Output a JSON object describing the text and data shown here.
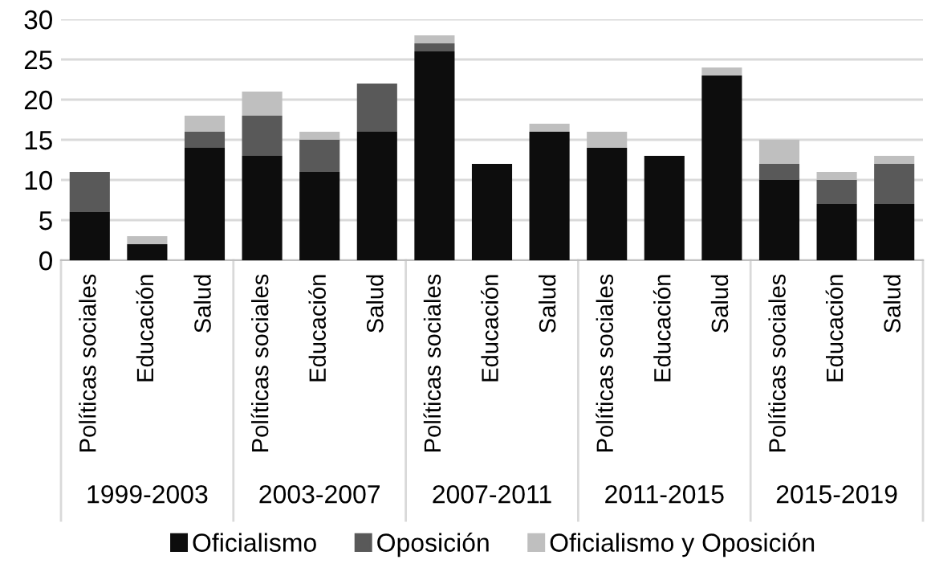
{
  "chart_data": {
    "type": "bar",
    "stacked": true,
    "categories": [
      "Políticas sociales",
      "Educación",
      "Salud",
      "Políticas sociales",
      "Educación",
      "Salud",
      "Políticas sociales",
      "Educación",
      "Salud",
      "Políticas sociales",
      "Educación",
      "Salud",
      "Políticas sociales",
      "Educación",
      "Salud"
    ],
    "series": [
      {
        "name": "Oficialismo",
        "color": "#0d0d0d",
        "values": [
          6,
          2,
          14,
          13,
          11,
          16,
          26,
          12,
          16,
          14,
          13,
          23,
          10,
          7,
          7
        ]
      },
      {
        "name": "Oposición",
        "color": "#595959",
        "values": [
          5,
          0,
          2,
          5,
          4,
          6,
          1,
          0,
          0,
          0,
          0,
          0,
          2,
          3,
          5
        ]
      },
      {
        "name": "Oficialismo y Oposición",
        "color": "#bfbfbf",
        "values": [
          0,
          1,
          2,
          3,
          1,
          0,
          1,
          0,
          1,
          2,
          0,
          1,
          3,
          1,
          1
        ]
      }
    ],
    "annotations": [
      "1999-2003",
      "2003-2007",
      "2007-2011",
      "2011-2015",
      "2015-2019"
    ],
    "ylim": [
      0,
      30
    ],
    "yticks": [
      0,
      5,
      10,
      15,
      20,
      25,
      30
    ],
    "grid": "y",
    "legend": "bottom"
  }
}
